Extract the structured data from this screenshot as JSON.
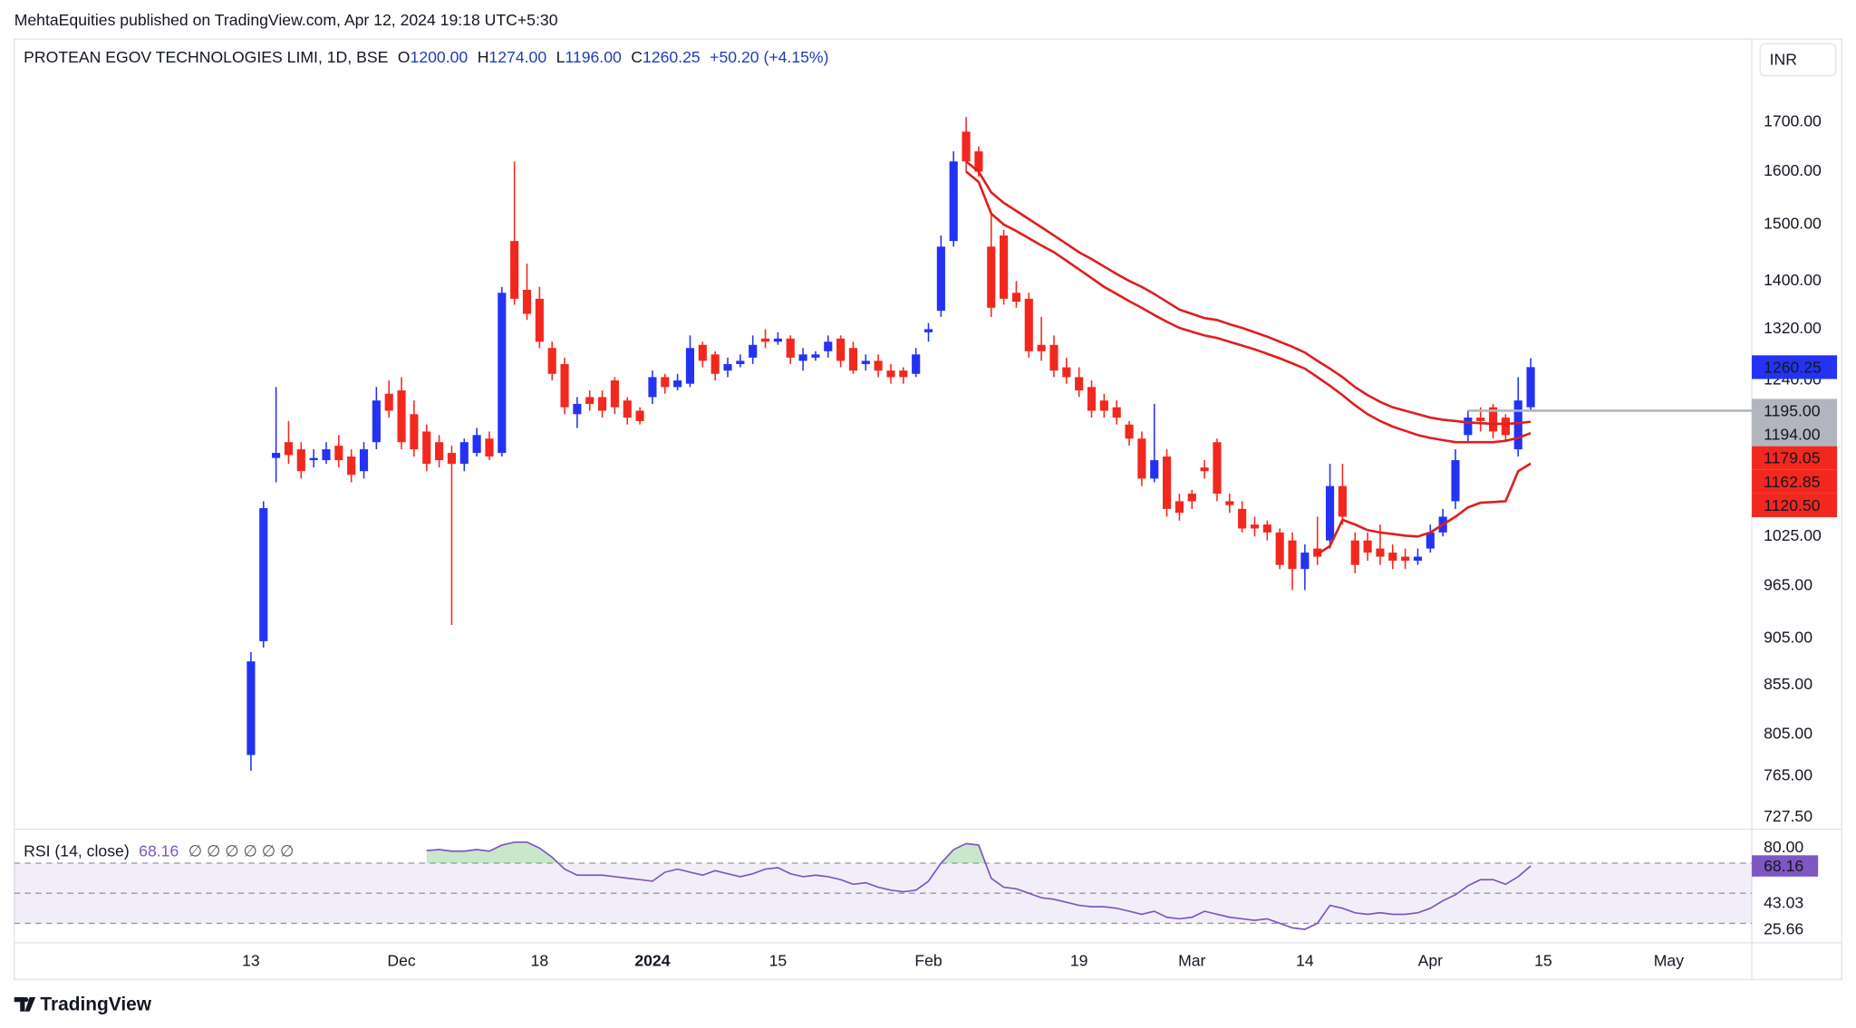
{
  "header": {
    "text": "MehtaEquities published on TradingView.com, Apr 12, 2024 19:18 UTC+5:30"
  },
  "footer": {
    "brand": "TradingView"
  },
  "currency": "INR",
  "chart_data": [
    {
      "type": "candlestick",
      "title": "PROTEAN EGOV TECHNOLOGIES LIMI, 1D, BSE",
      "ohlc": [
        {
          "key": "O",
          "value": "1200.00"
        },
        {
          "key": "H",
          "value": "1274.00"
        },
        {
          "key": "L",
          "value": "1196.00"
        },
        {
          "key": "C",
          "value": "1260.25"
        }
      ],
      "change": "+50.20 (+4.15%)",
      "log": true,
      "grid": false,
      "ylim": [
        718,
        1881
      ],
      "yticks": [
        {
          "value": 1700,
          "label": "1700.00"
        },
        {
          "value": 1600,
          "label": "1600.00"
        },
        {
          "value": 1500,
          "label": "1500.00"
        },
        {
          "value": 1400,
          "label": "1400.00"
        },
        {
          "value": 1320,
          "label": "1320.00"
        },
        {
          "value": 1240,
          "label": "1240.00"
        },
        {
          "value": 1025,
          "label": "1025.00"
        },
        {
          "value": 965,
          "label": "965.00"
        },
        {
          "value": 905,
          "label": "905.00"
        },
        {
          "value": 855,
          "label": "855.00"
        },
        {
          "value": 805,
          "label": "805.00"
        },
        {
          "value": 765,
          "label": "765.00"
        },
        {
          "value": 727.5,
          "label": "727.50"
        }
      ],
      "up_color": "#2433f2",
      "down_color": "#f2281f",
      "categories": [
        "13",
        null,
        null,
        null,
        null,
        null,
        null,
        null,
        null,
        null,
        null,
        null,
        "Dec",
        null,
        null,
        null,
        null,
        null,
        null,
        null,
        null,
        null,
        null,
        "18",
        null,
        null,
        null,
        null,
        null,
        null,
        null,
        null,
        "2024",
        null,
        null,
        null,
        null,
        null,
        null,
        null,
        null,
        null,
        "15",
        null,
        null,
        null,
        null,
        null,
        null,
        null,
        null,
        null,
        null,
        null,
        "Feb",
        null,
        null,
        null,
        null,
        null,
        null,
        null,
        null,
        null,
        null,
        null,
        "19",
        null,
        null,
        null,
        null,
        null,
        null,
        null,
        null,
        "Mar",
        null,
        null,
        null,
        null,
        null,
        null,
        null,
        null,
        "14",
        null,
        null,
        null,
        null,
        null,
        null,
        null,
        null,
        null,
        "Apr",
        null,
        null,
        null,
        null,
        null,
        null,
        null,
        null,
        "15",
        null,
        null,
        null,
        null,
        null,
        null,
        null,
        null,
        null,
        "May",
        null,
        null,
        null,
        null,
        null,
        null
      ],
      "open": [
        785,
        902,
        1128,
        1150,
        1140,
        1125,
        1125,
        1145,
        1130,
        1110,
        1150,
        1220,
        1225,
        1190,
        1165,
        1150,
        1135,
        1120,
        1135,
        1155,
        1135,
        1470,
        1385,
        1370,
        1290,
        1265,
        1190,
        1215,
        1215,
        1240,
        1210,
        1195,
        1215,
        1245,
        1230,
        1235,
        1295,
        1280,
        1255,
        1265,
        1275,
        1305,
        1300,
        1305,
        1270,
        1275,
        1285,
        1305,
        1290,
        1265,
        1270,
        1255,
        1255,
        1250,
        1315,
        1350,
        1470,
        1680,
        1640,
        1460,
        1480,
        1380,
        1370,
        1295,
        1295,
        1260,
        1245,
        1230,
        1210,
        1200,
        1175,
        1155,
        1100,
        1130,
        1070,
        1080,
        1115,
        1150,
        1070,
        1060,
        1040,
        1040,
        1030,
        1020,
        985,
        1010,
        1020,
        1090,
        1020,
        1020,
        1010,
        1005,
        1000,
        995,
        1010,
        1030,
        1070,
        1160,
        1185,
        1200,
        1185,
        1140,
        1200,
        null,
        null,
        null,
        null,
        null,
        null,
        null,
        null,
        null,
        null,
        null,
        null,
        null,
        null,
        null,
        null,
        null
      ],
      "high": [
        890,
        1070,
        1230,
        1180,
        1150,
        1140,
        1150,
        1160,
        1140,
        1150,
        1230,
        1240,
        1245,
        1210,
        1175,
        1160,
        1145,
        1155,
        1170,
        1165,
        1390,
        1620,
        1430,
        1390,
        1300,
        1275,
        1215,
        1225,
        1225,
        1245,
        1215,
        1200,
        1255,
        1250,
        1250,
        1310,
        1300,
        1285,
        1275,
        1280,
        1310,
        1320,
        1315,
        1310,
        1290,
        1285,
        1310,
        1310,
        1300,
        1280,
        1280,
        1265,
        1260,
        1290,
        1330,
        1480,
        1640,
        1710,
        1650,
        1525,
        1490,
        1400,
        1380,
        1340,
        1310,
        1275,
        1260,
        1240,
        1220,
        1210,
        1180,
        1165,
        1205,
        1140,
        1080,
        1085,
        1125,
        1155,
        1080,
        1070,
        1050,
        1045,
        1035,
        1030,
        1015,
        1050,
        1120,
        1120,
        1030,
        1030,
        1040,
        1015,
        1010,
        1010,
        1040,
        1060,
        1140,
        1195,
        1200,
        1205,
        1190,
        1245,
        1274,
        null,
        null,
        null,
        null,
        null,
        null,
        null,
        null,
        null,
        null,
        null,
        null,
        null,
        null,
        null,
        null,
        null
      ],
      "low": [
        770,
        895,
        1095,
        1120,
        1100,
        1115,
        1120,
        1115,
        1095,
        1100,
        1140,
        1185,
        1140,
        1130,
        1110,
        1115,
        920,
        1110,
        1130,
        1125,
        1130,
        1360,
        1335,
        1290,
        1240,
        1190,
        1170,
        1195,
        1185,
        1190,
        1175,
        1175,
        1205,
        1220,
        1225,
        1230,
        1260,
        1240,
        1245,
        1260,
        1265,
        1290,
        1295,
        1265,
        1255,
        1270,
        1275,
        1260,
        1250,
        1255,
        1245,
        1235,
        1235,
        1245,
        1300,
        1340,
        1460,
        1600,
        1590,
        1340,
        1360,
        1355,
        1275,
        1270,
        1245,
        1235,
        1215,
        1185,
        1185,
        1175,
        1145,
        1090,
        1095,
        1050,
        1045,
        1060,
        1100,
        1070,
        1055,
        1030,
        1025,
        1020,
        985,
        960,
        960,
        990,
        1010,
        1040,
        980,
        995,
        990,
        985,
        985,
        990,
        1005,
        1025,
        1060,
        1150,
        1165,
        1155,
        1150,
        1130,
        1196,
        null,
        null,
        null,
        null,
        null,
        null,
        null,
        null,
        null,
        null,
        null,
        null,
        null,
        null,
        null,
        null,
        null
      ],
      "close": [
        880,
        1061,
        1135,
        1132,
        1110,
        1128,
        1140,
        1125,
        1105,
        1140,
        1210,
        1195,
        1150,
        1140,
        1120,
        1125,
        1120,
        1150,
        1160,
        1130,
        1380,
        1370,
        1345,
        1300,
        1250,
        1200,
        1205,
        1205,
        1195,
        1200,
        1185,
        1180,
        1245,
        1230,
        1240,
        1290,
        1270,
        1250,
        1265,
        1270,
        1295,
        1300,
        1305,
        1275,
        1280,
        1280,
        1300,
        1270,
        1255,
        1270,
        1255,
        1245,
        1245,
        1280,
        1320,
        1460,
        1620,
        1620,
        1600,
        1355,
        1370,
        1365,
        1285,
        1285,
        1255,
        1245,
        1225,
        1195,
        1195,
        1185,
        1155,
        1100,
        1125,
        1060,
        1055,
        1070,
        1110,
        1080,
        1065,
        1035,
        1035,
        1030,
        990,
        985,
        1005,
        1000,
        1090,
        1050,
        990,
        1005,
        1000,
        995,
        995,
        1000,
        1030,
        1050,
        1125,
        1185,
        1180,
        1165,
        1160,
        1210,
        1260.25,
        null,
        null,
        null,
        null,
        null,
        null,
        null,
        null,
        null,
        null,
        null,
        null,
        null,
        null,
        null,
        null,
        null
      ],
      "overlays": [
        {
          "color": "#e11d1d",
          "values": [
            null,
            null,
            null,
            null,
            null,
            null,
            null,
            null,
            null,
            null,
            null,
            null,
            null,
            null,
            null,
            null,
            null,
            null,
            null,
            null,
            null,
            null,
            null,
            null,
            null,
            null,
            null,
            null,
            null,
            null,
            null,
            null,
            null,
            null,
            null,
            null,
            null,
            null,
            null,
            null,
            null,
            null,
            null,
            null,
            null,
            null,
            null,
            null,
            null,
            null,
            null,
            null,
            null,
            null,
            null,
            null,
            null,
            1620,
            1600,
            1560,
            1540,
            1525,
            1510,
            1495,
            1480,
            1465,
            1450,
            1438,
            1425,
            1412,
            1400,
            1390,
            1378,
            1365,
            1352,
            1345,
            1338,
            1335,
            1328,
            1322,
            1315,
            1308,
            1300,
            1292,
            1283,
            1270,
            1258,
            1245,
            1230,
            1218,
            1208,
            1200,
            1195,
            1190,
            1185,
            1182,
            1180,
            1178,
            1177,
            1176,
            1176,
            1177,
            1179.05,
            null,
            null,
            null,
            null,
            null,
            null,
            null,
            null,
            null,
            null,
            null,
            null,
            null,
            null,
            null,
            null,
            null
          ]
        },
        {
          "color": "#e11d1d",
          "values": [
            null,
            null,
            null,
            null,
            null,
            null,
            null,
            null,
            null,
            null,
            null,
            null,
            null,
            null,
            null,
            null,
            null,
            null,
            null,
            null,
            null,
            null,
            null,
            null,
            null,
            null,
            null,
            null,
            null,
            null,
            null,
            null,
            null,
            null,
            null,
            null,
            null,
            null,
            null,
            null,
            null,
            null,
            null,
            null,
            null,
            null,
            null,
            null,
            null,
            null,
            null,
            null,
            null,
            null,
            null,
            null,
            null,
            1600,
            1580,
            1520,
            1500,
            1488,
            1475,
            1462,
            1450,
            1435,
            1420,
            1405,
            1390,
            1378,
            1366,
            1355,
            1343,
            1332,
            1322,
            1316,
            1310,
            1306,
            1300,
            1294,
            1288,
            1281,
            1274,
            1266,
            1258,
            1245,
            1232,
            1218,
            1203,
            1190,
            1180,
            1172,
            1166,
            1160,
            1156,
            1153,
            1150,
            1150,
            1150,
            1150,
            1152,
            1156,
            1162.85,
            null,
            null,
            null,
            null,
            null,
            null,
            null,
            null,
            null,
            null,
            null,
            null,
            null,
            null,
            null,
            null,
            null
          ]
        },
        {
          "color": "#e11d1d",
          "values": [
            null,
            null,
            null,
            null,
            null,
            null,
            null,
            null,
            null,
            null,
            null,
            null,
            null,
            null,
            null,
            null,
            null,
            null,
            null,
            null,
            null,
            null,
            null,
            null,
            null,
            null,
            null,
            null,
            null,
            null,
            null,
            null,
            null,
            null,
            null,
            null,
            null,
            null,
            null,
            null,
            null,
            null,
            null,
            null,
            null,
            null,
            null,
            null,
            null,
            null,
            null,
            null,
            null,
            null,
            null,
            null,
            null,
            null,
            null,
            null,
            null,
            null,
            null,
            null,
            null,
            null,
            null,
            null,
            null,
            null,
            null,
            null,
            null,
            null,
            null,
            null,
            null,
            null,
            null,
            null,
            null,
            null,
            null,
            null,
            null,
            1003,
            1013,
            1046,
            1040,
            1033,
            1030,
            1028,
            1026,
            1025,
            1030,
            1040,
            1050,
            1062,
            1068,
            1069,
            1070,
            1110,
            1120.5,
            null,
            null,
            null,
            null,
            null,
            null,
            null,
            null,
            null,
            null,
            null,
            null,
            null,
            null,
            null,
            null,
            null
          ]
        }
      ],
      "price_tags": [
        {
          "value": 1260.25,
          "label": "1260.25",
          "bg": "#2433f2",
          "fg": "#ffffff"
        },
        {
          "value": 1195,
          "label": "1195.00",
          "bg": "#b2b5be",
          "fg": "#131722",
          "line": true
        },
        {
          "value": 1194,
          "label": "1194.00",
          "bg": "#b2b5be",
          "fg": "#131722"
        },
        {
          "value": 1179.05,
          "label": "1179.05",
          "bg": "#f2281f",
          "fg": "#ffffff"
        },
        {
          "value": 1162.85,
          "label": "1162.85",
          "bg": "#f2281f",
          "fg": "#ffffff"
        },
        {
          "value": 1120.5,
          "label": "1120.50",
          "bg": "#f2281f",
          "fg": "#ffffff"
        }
      ]
    },
    {
      "type": "line",
      "title": "RSI (14, close)",
      "inputs": "∅ ∅ ∅ ∅ ∅ ∅",
      "color": "#7e57c2",
      "ylim": [
        18.6,
        89.4
      ],
      "yticks": [
        {
          "value": 80,
          "label": "80.00"
        },
        {
          "value": 43.03,
          "label": "43.03"
        },
        {
          "value": 25.66,
          "label": "25.66"
        }
      ],
      "bands": [
        70,
        50,
        30
      ],
      "values": [
        null,
        null,
        null,
        null,
        null,
        null,
        null,
        null,
        null,
        null,
        null,
        null,
        null,
        null,
        78.4,
        79,
        78,
        78,
        79,
        78,
        82,
        84,
        84,
        80,
        74,
        66,
        62,
        62,
        62,
        61,
        60,
        59,
        58,
        64,
        66,
        64,
        62,
        65,
        63,
        61,
        63,
        66,
        67,
        63,
        61,
        62,
        61,
        59,
        56,
        57,
        54,
        52,
        51,
        52,
        58,
        70,
        79,
        83,
        82,
        60,
        54,
        53,
        50,
        47,
        46,
        44,
        42,
        41,
        41,
        40,
        38,
        36,
        38,
        34,
        33,
        34,
        38,
        36,
        34,
        33,
        32,
        33,
        30,
        27,
        26,
        30,
        42,
        40,
        37,
        36,
        37,
        36,
        36,
        37,
        40,
        45,
        49,
        55,
        59,
        59,
        56,
        61,
        68.16,
        null,
        null,
        null,
        null,
        null,
        null,
        null,
        null,
        null,
        null,
        null,
        null,
        null,
        null,
        null,
        null,
        null
      ]
    }
  ]
}
